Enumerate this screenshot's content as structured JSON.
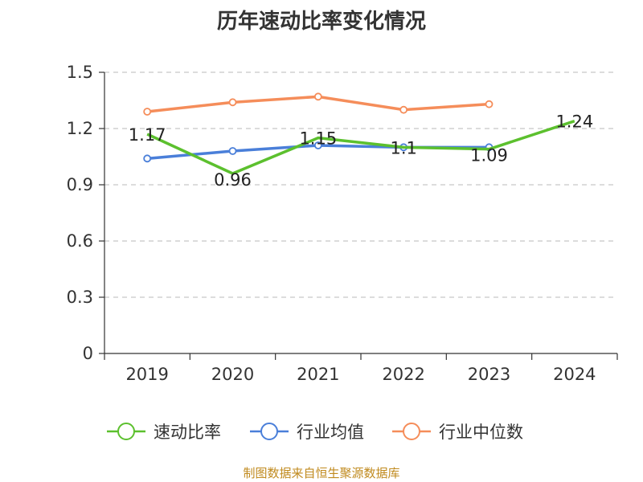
{
  "chart_data": {
    "type": "line",
    "title": "历年速动比率变化情况",
    "categories": [
      "2019",
      "2020",
      "2021",
      "2022",
      "2023",
      "2024"
    ],
    "ylim": [
      0,
      1.5
    ],
    "yticks": [
      "0",
      "0.3",
      "0.6",
      "0.9",
      "1.2",
      "1.5"
    ],
    "ytick_values": [
      0,
      0.3,
      0.6,
      0.9,
      1.2,
      1.5
    ],
    "grid": true,
    "legend_position": "bottom",
    "series": [
      {
        "name": "速动比率",
        "color": "#5cc02e",
        "values": [
          1.17,
          0.96,
          1.15,
          1.1,
          1.09,
          1.24
        ],
        "labels": [
          "1.17",
          "0.96",
          "1.15",
          "1.1",
          "1.09",
          "1.24"
        ]
      },
      {
        "name": "行业均值",
        "color": "#4a7fd9",
        "values": [
          1.04,
          1.08,
          1.11,
          1.1,
          1.1,
          null
        ]
      },
      {
        "name": "行业中位数",
        "color": "#f58d5a",
        "values": [
          1.29,
          1.34,
          1.37,
          1.3,
          1.33,
          null
        ]
      }
    ]
  },
  "footer": {
    "credit": "制图数据来自恒生聚源数据库"
  }
}
